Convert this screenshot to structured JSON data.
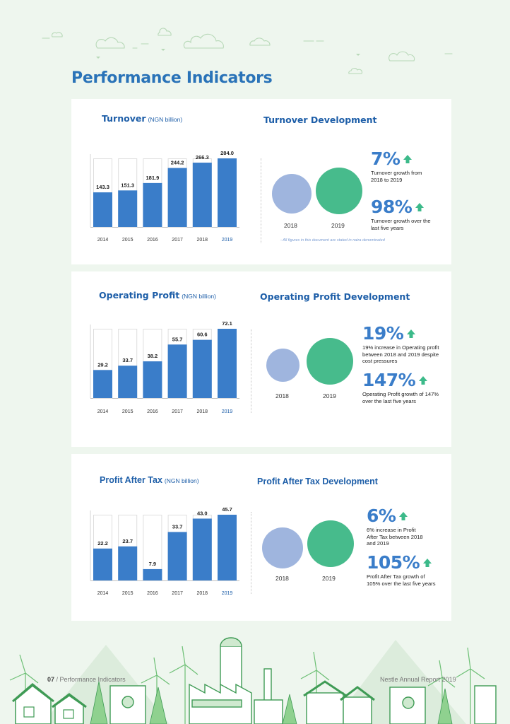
{
  "page": {
    "title": "Performance Indicators",
    "footer_left_num": "07",
    "footer_left_sep": " / ",
    "footer_left_text": "Performance Indicators",
    "footer_right": "Nestle Annual Report 2019"
  },
  "colors": {
    "bar": "#3a7dc9",
    "bar_outline": "#dedede",
    "circle_2018": "#9fb5de",
    "circle_2019": "#47bb8c",
    "arrow": "#3cba8a",
    "title": "#1d5ea8"
  },
  "icons": [
    "cloud-icon",
    "arrow-up-icon",
    "wind-turbine-icon",
    "house-icon",
    "factory-icon",
    "tree-icon"
  ],
  "sections": [
    {
      "title": "Turnover",
      "unit": "(NGN billion)",
      "dev_title": "Turnover Development",
      "year_2018": "2018",
      "year_2019": "2019",
      "stat1_value": "7%",
      "stat1_desc": "Turnover growth from 2018 to 2019",
      "stat2_value": "98%",
      "stat2_desc": "Turnover growth over the last five years",
      "footnote": "- All figures in this document are stated in naira denominated"
    },
    {
      "title": "Operating Profit",
      "unit": "(NGN billion)",
      "dev_title": "Operating Profit Development",
      "year_2018": "2018",
      "year_2019": "2019",
      "stat1_value": "19%",
      "stat1_desc": "19% increase in Operating profit between 2018 and 2019 despite cost pressures",
      "stat2_value": "147%",
      "stat2_desc": "Operating Profit growth of 147% over the last five years"
    },
    {
      "title": "Profit After Tax",
      "unit": "(NGN billion)",
      "dev_title": "Profit After Tax Development",
      "year_2018": "2018",
      "year_2019": "2019",
      "stat1_value": "6%",
      "stat1_desc": "6% increase in Profit After Tax between 2018 and 2019",
      "stat2_value": "105%",
      "stat2_desc": "Profit After Tax growth of 105% over the last five years"
    }
  ],
  "chart_data": [
    {
      "type": "bar",
      "title": "Turnover",
      "ylabel": "NGN billion",
      "categories": [
        "2014",
        "2015",
        "2016",
        "2017",
        "2018",
        "2019"
      ],
      "values": [
        143.3,
        151.3,
        181.9,
        244.2,
        266.3,
        284.0
      ],
      "value_labels": [
        "143.3",
        "151.3",
        "181.9",
        "244.2",
        "266.3",
        "284.0"
      ],
      "ylim": [
        0,
        284.0
      ],
      "highlight": "2019"
    },
    {
      "type": "bar",
      "title": "Operating Profit",
      "ylabel": "NGN billion",
      "categories": [
        "2014",
        "2015",
        "2016",
        "2017",
        "2018",
        "2019"
      ],
      "values": [
        29.2,
        33.7,
        38.2,
        55.7,
        60.6,
        72.1
      ],
      "value_labels": [
        "29.2",
        "33.7",
        "38.2",
        "55.7",
        "60.6",
        "72.1"
      ],
      "ylim": [
        0,
        72.1
      ],
      "highlight": "2019"
    },
    {
      "type": "bar",
      "title": "Profit After Tax",
      "ylabel": "NGN billion",
      "categories": [
        "2014",
        "2015",
        "2016",
        "2017",
        "2018",
        "2019"
      ],
      "values": [
        22.2,
        23.7,
        7.9,
        33.7,
        43.0,
        45.7
      ],
      "value_labels": [
        "22.2",
        "23.7",
        "7.9",
        "33.7",
        "43.0",
        "45.7"
      ],
      "ylim": [
        0,
        45.7
      ],
      "highlight": "2019"
    }
  ]
}
